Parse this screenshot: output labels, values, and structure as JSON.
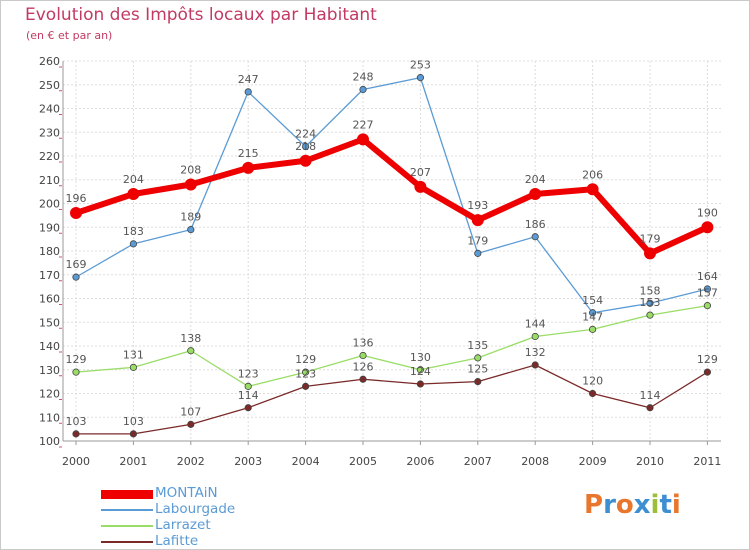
{
  "title": "Evolution des Impôts locaux par Habitant",
  "subtitle": "(en € et par an)",
  "logo_text": "Proxiti",
  "logo_colors": [
    "#e8762c",
    "#3d8fd1",
    "#e8762c",
    "#3d8fd1",
    "#9cbe3a",
    "#3d8fd1",
    "#e8762c"
  ],
  "chart_data": {
    "type": "line",
    "title": "Evolution des Impôts locaux par Habitant",
    "subtitle": "(en € et par an)",
    "xlabel": "",
    "ylabel": "",
    "ylim": [
      100,
      260
    ],
    "yticks": [
      100,
      110,
      120,
      130,
      140,
      150,
      160,
      170,
      180,
      190,
      200,
      210,
      220,
      230,
      240,
      250,
      260
    ],
    "categories": [
      "2000",
      "2001",
      "2002",
      "2003",
      "2004",
      "2005",
      "2006",
      "2007",
      "2008",
      "2009",
      "2010",
      "2011"
    ],
    "grid": true,
    "legend_position": "bottom-left",
    "series": [
      {
        "name": "MONTAiN",
        "color": "#ee0000",
        "values": [
          196,
          204,
          208,
          215,
          218,
          227,
          207,
          193,
          204,
          206,
          179,
          190
        ]
      },
      {
        "name": "Labourgade",
        "color": "#5b9bd5",
        "values": [
          169,
          183,
          189,
          247,
          224,
          248,
          253,
          179,
          186,
          154,
          158,
          164
        ]
      },
      {
        "name": "Larrazet",
        "color": "#99dd66",
        "values": [
          129,
          131,
          138,
          123,
          129,
          136,
          130,
          135,
          144,
          147,
          153,
          157
        ]
      },
      {
        "name": "Lafitte",
        "color": "#7b2a2a",
        "values": [
          103,
          103,
          107,
          114,
          123,
          126,
          124,
          125,
          132,
          120,
          114,
          129
        ]
      }
    ]
  }
}
